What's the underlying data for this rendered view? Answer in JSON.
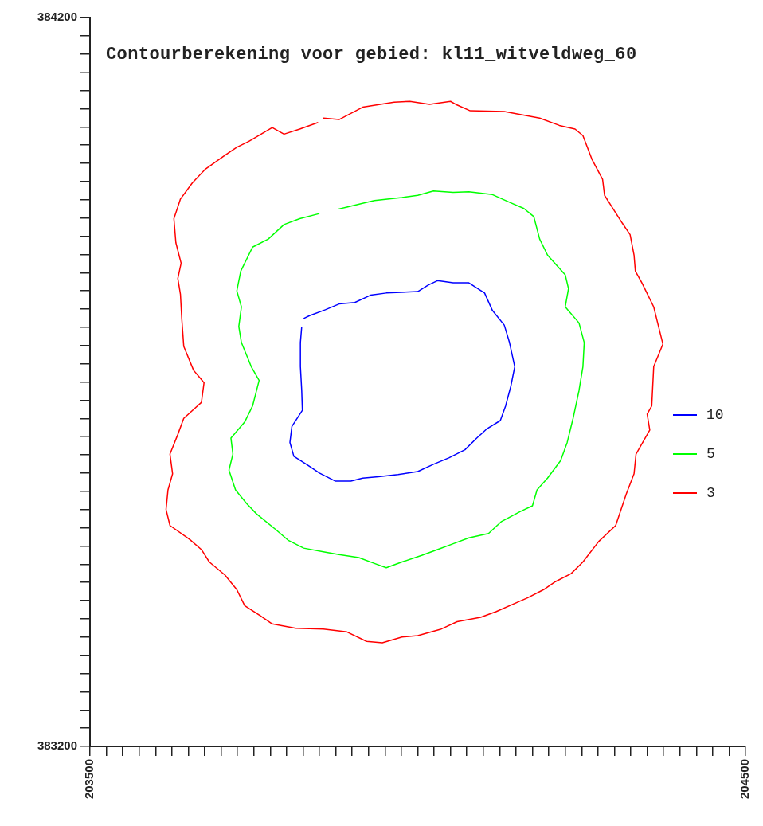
{
  "chart_data": {
    "type": "line",
    "title": "Contourberekening voor gebied: kl11_witveldweg_60",
    "marker": "none",
    "legend": "right",
    "xlim": [
      203500,
      204500
    ],
    "ylim": [
      383200,
      384200
    ],
    "xticks": [
      203500,
      {
        "value": 203525,
        "label": null
      },
      {
        "value": 203550,
        "label": null
      },
      {
        "value": 203575,
        "label": null
      },
      {
        "value": 203600,
        "label": null
      },
      {
        "value": 203625,
        "label": null
      },
      {
        "value": 203650,
        "label": null
      },
      {
        "value": 203675,
        "label": null
      },
      {
        "value": 203700,
        "label": null
      },
      {
        "value": 203725,
        "label": null
      },
      {
        "value": 203750,
        "label": null
      },
      {
        "value": 203775,
        "label": null
      },
      {
        "value": 203800,
        "label": null
      },
      {
        "value": 203825,
        "label": null
      },
      {
        "value": 203850,
        "label": null
      },
      {
        "value": 203875,
        "label": null
      },
      {
        "value": 203900,
        "label": null
      },
      {
        "value": 203925,
        "label": null
      },
      {
        "value": 203950,
        "label": null
      },
      {
        "value": 203975,
        "label": null
      },
      {
        "value": 204000,
        "label": null
      },
      {
        "value": 204025,
        "label": null
      },
      {
        "value": 204050,
        "label": null
      },
      {
        "value": 204075,
        "label": null
      },
      {
        "value": 204100,
        "label": null
      },
      {
        "value": 204125,
        "label": null
      },
      {
        "value": 204150,
        "label": null
      },
      {
        "value": 204175,
        "label": null
      },
      {
        "value": 204200,
        "label": null
      },
      {
        "value": 204225,
        "label": null
      },
      {
        "value": 204250,
        "label": null
      },
      {
        "value": 204275,
        "label": null
      },
      {
        "value": 204300,
        "label": null
      },
      {
        "value": 204325,
        "label": null
      },
      {
        "value": 204350,
        "label": null
      },
      {
        "value": 204375,
        "label": null
      },
      {
        "value": 204400,
        "label": null
      },
      {
        "value": 204425,
        "label": null
      },
      {
        "value": 204450,
        "label": null
      },
      {
        "value": 204475,
        "label": null
      },
      204500
    ],
    "yticks": [
      383200,
      {
        "value": 383225,
        "label": null
      },
      {
        "value": 383250,
        "label": null
      },
      {
        "value": 383275,
        "label": null
      },
      {
        "value": 383300,
        "label": null
      },
      {
        "value": 383325,
        "label": null
      },
      {
        "value": 383350,
        "label": null
      },
      {
        "value": 383375,
        "label": null
      },
      {
        "value": 383400,
        "label": null
      },
      {
        "value": 383425,
        "label": null
      },
      {
        "value": 383450,
        "label": null
      },
      {
        "value": 383475,
        "label": null
      },
      {
        "value": 383500,
        "label": null
      },
      {
        "value": 383525,
        "label": null
      },
      {
        "value": 383550,
        "label": null
      },
      {
        "value": 383575,
        "label": null
      },
      {
        "value": 383600,
        "label": null
      },
      {
        "value": 383625,
        "label": null
      },
      {
        "value": 383650,
        "label": null
      },
      {
        "value": 383675,
        "label": null
      },
      {
        "value": 383700,
        "label": null
      },
      {
        "value": 383725,
        "label": null
      },
      {
        "value": 383750,
        "label": null
      },
      {
        "value": 383775,
        "label": null
      },
      {
        "value": 383800,
        "label": null
      },
      {
        "value": 383825,
        "label": null
      },
      {
        "value": 383850,
        "label": null
      },
      {
        "value": 383875,
        "label": null
      },
      {
        "value": 383900,
        "label": null
      },
      {
        "value": 383925,
        "label": null
      },
      {
        "value": 383950,
        "label": null
      },
      {
        "value": 383975,
        "label": null
      },
      {
        "value": 384000,
        "label": null
      },
      {
        "value": 384025,
        "label": null
      },
      {
        "value": 384050,
        "label": null
      },
      {
        "value": 384075,
        "label": null
      },
      {
        "value": 384100,
        "label": null
      },
      {
        "value": 384125,
        "label": null
      },
      {
        "value": 384150,
        "label": null
      },
      {
        "value": 384175,
        "label": null
      },
      384200
    ],
    "series": [
      {
        "name": "10",
        "type": "line",
        "color": "#0000ff",
        "x": [
          203826,
          203835,
          203859,
          203880,
          203904,
          203928,
          203952,
          204000,
          204016,
          204030,
          204054,
          204078,
          204102,
          204114,
          204132,
          204140,
          204148,
          204142,
          204134,
          204126,
          204106,
          204090,
          204072,
          204048,
          204024,
          204000,
          203970,
          203940,
          203916,
          203898,
          203874,
          203850,
          203832,
          203811,
          203805,
          203808,
          203824,
          203823,
          203821,
          203821,
          203823
        ],
        "values": [
          383787,
          383791,
          383799,
          383807,
          383809,
          383819,
          383822,
          383824,
          383833,
          383839,
          383836,
          383836,
          383822,
          383798,
          383778,
          383754,
          383721,
          383694,
          383667,
          383647,
          383636,
          383623,
          383607,
          383596,
          383587,
          383577,
          383573,
          383570,
          383568,
          383564,
          383564,
          383575,
          383586,
          383598,
          383617,
          383639,
          383661,
          383688,
          383721,
          383754,
          383776
        ]
      },
      {
        "name": "5",
        "type": "line",
        "color": "#00ff00",
        "x": [
          203878,
          203892,
          203934,
          203976,
          204000,
          204024,
          204054,
          204078,
          204114,
          204144,
          204162,
          204177,
          204186,
          204198,
          204225,
          204230,
          204225,
          204246,
          204254,
          204252,
          204246,
          204237,
          204228,
          204218,
          204198,
          204182,
          204175,
          204156,
          204127,
          204108,
          204078,
          204054,
          204030,
          204006,
          203976,
          203952,
          203934,
          203910,
          203880,
          203856,
          203826,
          203802,
          203784,
          203754,
          203739,
          203722,
          203712,
          203718,
          203715,
          203736,
          203748,
          203758,
          203746,
          203731,
          203727,
          203731,
          203724,
          203730,
          203748,
          203772,
          203796,
          203820,
          203850
        ],
        "values": [
          383937,
          383940,
          383949,
          383953,
          383956,
          383962,
          383960,
          383961,
          383957,
          383945,
          383938,
          383927,
          383896,
          383874,
          383847,
          383828,
          383803,
          383781,
          383754,
          383721,
          383688,
          383650,
          383617,
          383592,
          383568,
          383552,
          383530,
          383522,
          383508,
          383492,
          383486,
          383478,
          383470,
          383462,
          383453,
          383445,
          383451,
          383459,
          383463,
          383467,
          383472,
          383483,
          383497,
          383519,
          383533,
          383552,
          383579,
          383601,
          383623,
          383645,
          383667,
          383702,
          383721,
          383754,
          383776,
          383803,
          383825,
          383852,
          383885,
          383896,
          383916,
          383924,
          383931
        ]
      },
      {
        "name": "3",
        "type": "line",
        "color": "#ff0000",
        "x": [
          203856,
          203880,
          203916,
          203964,
          203988,
          204018,
          204050,
          204060,
          204080,
          204132,
          204186,
          204216,
          204240,
          204252,
          204266,
          204282,
          204285,
          204312,
          204324,
          204330,
          204332,
          204342,
          204360,
          204366,
          204374,
          204360,
          204357,
          204350,
          204354,
          204333,
          204330,
          204318,
          204302,
          204276,
          204252,
          204234,
          204210,
          204192,
          204168,
          204120,
          204096,
          204060,
          204036,
          204000,
          203976,
          203946,
          203922,
          203892,
          203856,
          203814,
          203778,
          203760,
          203736,
          203724,
          203706,
          203682,
          203670,
          203652,
          203622,
          203616,
          203619,
          203626,
          203622,
          203634,
          203643,
          203670,
          203674,
          203658,
          203643,
          203640,
          203638,
          203634,
          203639,
          203631,
          203628,
          203638,
          203656,
          203676,
          203706,
          203724,
          203742,
          203778,
          203796,
          203820,
          203848
        ],
        "values": [
          384062,
          384060,
          384077,
          384084,
          384085,
          384081,
          384085,
          384080,
          384072,
          384071,
          384062,
          384052,
          384047,
          384038,
          384005,
          383978,
          383956,
          383918,
          383902,
          383874,
          383852,
          383836,
          383803,
          383781,
          383752,
          383721,
          383667,
          383656,
          383634,
          383601,
          383574,
          383546,
          383503,
          383481,
          383453,
          383437,
          383426,
          383415,
          383404,
          383385,
          383377,
          383371,
          383361,
          383352,
          383350,
          383342,
          383344,
          383357,
          383361,
          383362,
          383368,
          383379,
          383393,
          383415,
          383435,
          383453,
          383470,
          383484,
          383503,
          383525,
          383552,
          383574,
          383601,
          383628,
          383650,
          383672,
          383699,
          383716,
          383749,
          383787,
          383820,
          383842,
          383863,
          383891,
          383924,
          383951,
          383973,
          383992,
          384011,
          384022,
          384030,
          384049,
          384040,
          384047,
          384056
        ]
      }
    ]
  }
}
